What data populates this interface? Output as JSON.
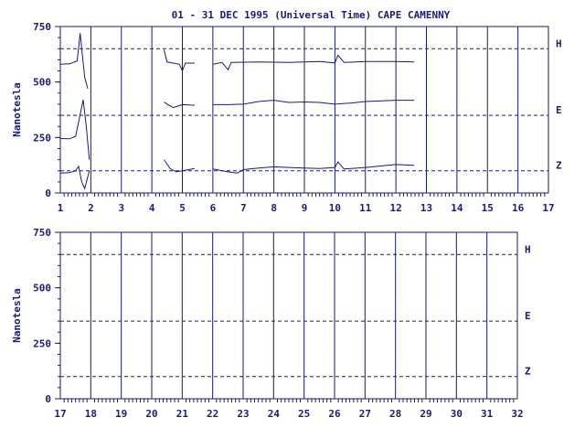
{
  "title": "01 - 31 DEC 1995 (Universal Time) CAPE CAMENNY",
  "colors": {
    "ink": "#1a1a7a",
    "background": "#ffffff"
  },
  "chart_data": [
    {
      "type": "line",
      "panel": "top",
      "ylabel": "Nanotesla",
      "xlim": [
        1,
        17
      ],
      "ylim": [
        0,
        750
      ],
      "x_ticks": [
        "1",
        "2",
        "3",
        "4",
        "5",
        "6",
        "7",
        "8",
        "9",
        "10",
        "11",
        "12",
        "13",
        "14",
        "15",
        "16",
        "17"
      ],
      "y_ticks": [
        "0",
        "250",
        "500",
        "750"
      ],
      "reference_lines": [
        {
          "label": "H",
          "value": 650
        },
        {
          "label": "E",
          "value": 350
        },
        {
          "label": "Z",
          "value": 100
        }
      ],
      "series": [
        {
          "name": "H",
          "segments": [
            [
              [
                1.0,
                580
              ],
              [
                1.3,
                582
              ],
              [
                1.55,
                595
              ],
              [
                1.65,
                720
              ],
              [
                1.7,
                650
              ],
              [
                1.8,
                520
              ],
              [
                1.9,
                470
              ]
            ],
            [
              [
                4.4,
                645
              ],
              [
                4.5,
                590
              ],
              [
                4.7,
                585
              ],
              [
                4.9,
                580
              ],
              [
                5.0,
                550
              ],
              [
                5.1,
                585
              ],
              [
                5.4,
                585
              ]
            ],
            [
              [
                6.0,
                580
              ],
              [
                6.3,
                588
              ],
              [
                6.5,
                555
              ],
              [
                6.6,
                588
              ],
              [
                7.5,
                590
              ],
              [
                8.5,
                588
              ],
              [
                9.5,
                592
              ],
              [
                10.0,
                586
              ],
              [
                10.1,
                620
              ],
              [
                10.3,
                588
              ],
              [
                11.0,
                592
              ],
              [
                12.0,
                592
              ],
              [
                12.6,
                590
              ]
            ]
          ]
        },
        {
          "name": "E",
          "segments": [
            [
              [
                1.0,
                245
              ],
              [
                1.3,
                244
              ],
              [
                1.5,
                255
              ],
              [
                1.6,
                320
              ],
              [
                1.75,
                420
              ],
              [
                1.85,
                300
              ],
              [
                1.95,
                150
              ]
            ],
            [
              [
                4.4,
                410
              ],
              [
                4.5,
                400
              ],
              [
                4.7,
                385
              ],
              [
                5.0,
                398
              ],
              [
                5.4,
                395
              ]
            ],
            [
              [
                6.0,
                398
              ],
              [
                6.5,
                398
              ],
              [
                7.0,
                400
              ],
              [
                7.5,
                412
              ],
              [
                8.0,
                418
              ],
              [
                8.5,
                408
              ],
              [
                9.0,
                410
              ],
              [
                9.5,
                408
              ],
              [
                10.0,
                400
              ],
              [
                10.5,
                405
              ],
              [
                11.0,
                412
              ],
              [
                12.0,
                418
              ],
              [
                12.6,
                418
              ]
            ]
          ]
        },
        {
          "name": "Z",
          "segments": [
            [
              [
                1.0,
                90
              ],
              [
                1.3,
                92
              ],
              [
                1.5,
                100
              ],
              [
                1.6,
                120
              ],
              [
                1.7,
                50
              ],
              [
                1.8,
                20
              ],
              [
                1.95,
                100
              ]
            ],
            [
              [
                4.4,
                150
              ],
              [
                4.6,
                110
              ],
              [
                4.8,
                95
              ],
              [
                5.0,
                100
              ],
              [
                5.4,
                110
              ]
            ],
            [
              [
                6.0,
                108
              ],
              [
                6.5,
                95
              ],
              [
                6.8,
                90
              ],
              [
                7.0,
                105
              ],
              [
                7.5,
                112
              ],
              [
                8.0,
                118
              ],
              [
                8.5,
                115
              ],
              [
                9.0,
                112
              ],
              [
                9.5,
                110
              ],
              [
                10.0,
                115
              ],
              [
                10.1,
                140
              ],
              [
                10.3,
                108
              ],
              [
                11.0,
                115
              ],
              [
                12.0,
                128
              ],
              [
                12.6,
                125
              ]
            ]
          ]
        }
      ]
    },
    {
      "type": "line",
      "panel": "bottom",
      "ylabel": "Nanotesla",
      "xlim": [
        17,
        32
      ],
      "ylim": [
        0,
        750
      ],
      "x_ticks": [
        "17",
        "18",
        "19",
        "20",
        "21",
        "22",
        "23",
        "24",
        "25",
        "26",
        "27",
        "28",
        "29",
        "30",
        "31",
        "32"
      ],
      "y_ticks": [
        "0",
        "250",
        "500",
        "750"
      ],
      "reference_lines": [
        {
          "label": "H",
          "value": 650
        },
        {
          "label": "E",
          "value": 350
        },
        {
          "label": "Z",
          "value": 100
        }
      ],
      "series": []
    }
  ]
}
